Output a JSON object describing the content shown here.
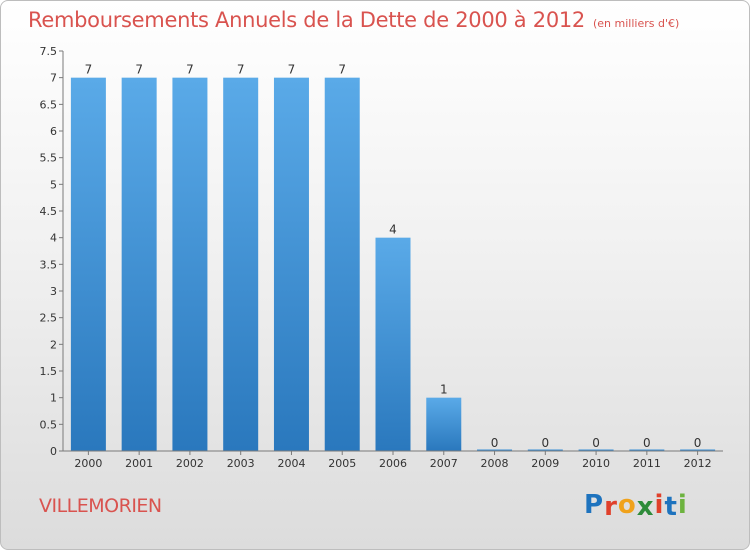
{
  "chart_data": {
    "type": "bar",
    "title": "Remboursements Annuels de la Dette de 2000 à 2012",
    "subtitle": "(en milliers d'€)",
    "categories": [
      "2000",
      "2001",
      "2002",
      "2003",
      "2004",
      "2005",
      "2006",
      "2007",
      "2008",
      "2009",
      "2010",
      "2011",
      "2012"
    ],
    "values": [
      7,
      7,
      7,
      7,
      7,
      7,
      4,
      1,
      0,
      0,
      0,
      0,
      0
    ],
    "data_labels": [
      "7",
      "7",
      "7",
      "7",
      "7",
      "7",
      "4",
      "1",
      "0",
      "0",
      "0",
      "0",
      "0"
    ],
    "yticks": [
      "0",
      "0.5",
      "1",
      "1.5",
      "2",
      "2.5",
      "3",
      "3.5",
      "4",
      "4.5",
      "5",
      "5.5",
      "6",
      "6.5",
      "7",
      "7.5"
    ],
    "ylim": [
      0,
      7.5
    ],
    "grid": false,
    "bar_color": "#3a8fd6"
  },
  "commune": "VILLEMORIEN",
  "logo": {
    "letters": [
      "P",
      "r",
      "o",
      "x",
      "i",
      "t",
      "i"
    ],
    "colors": [
      "#1e73be",
      "#e0402b",
      "#f0a21b",
      "#2e8b3a",
      "#e0402b",
      "#1e73be",
      "#6db33f"
    ]
  }
}
